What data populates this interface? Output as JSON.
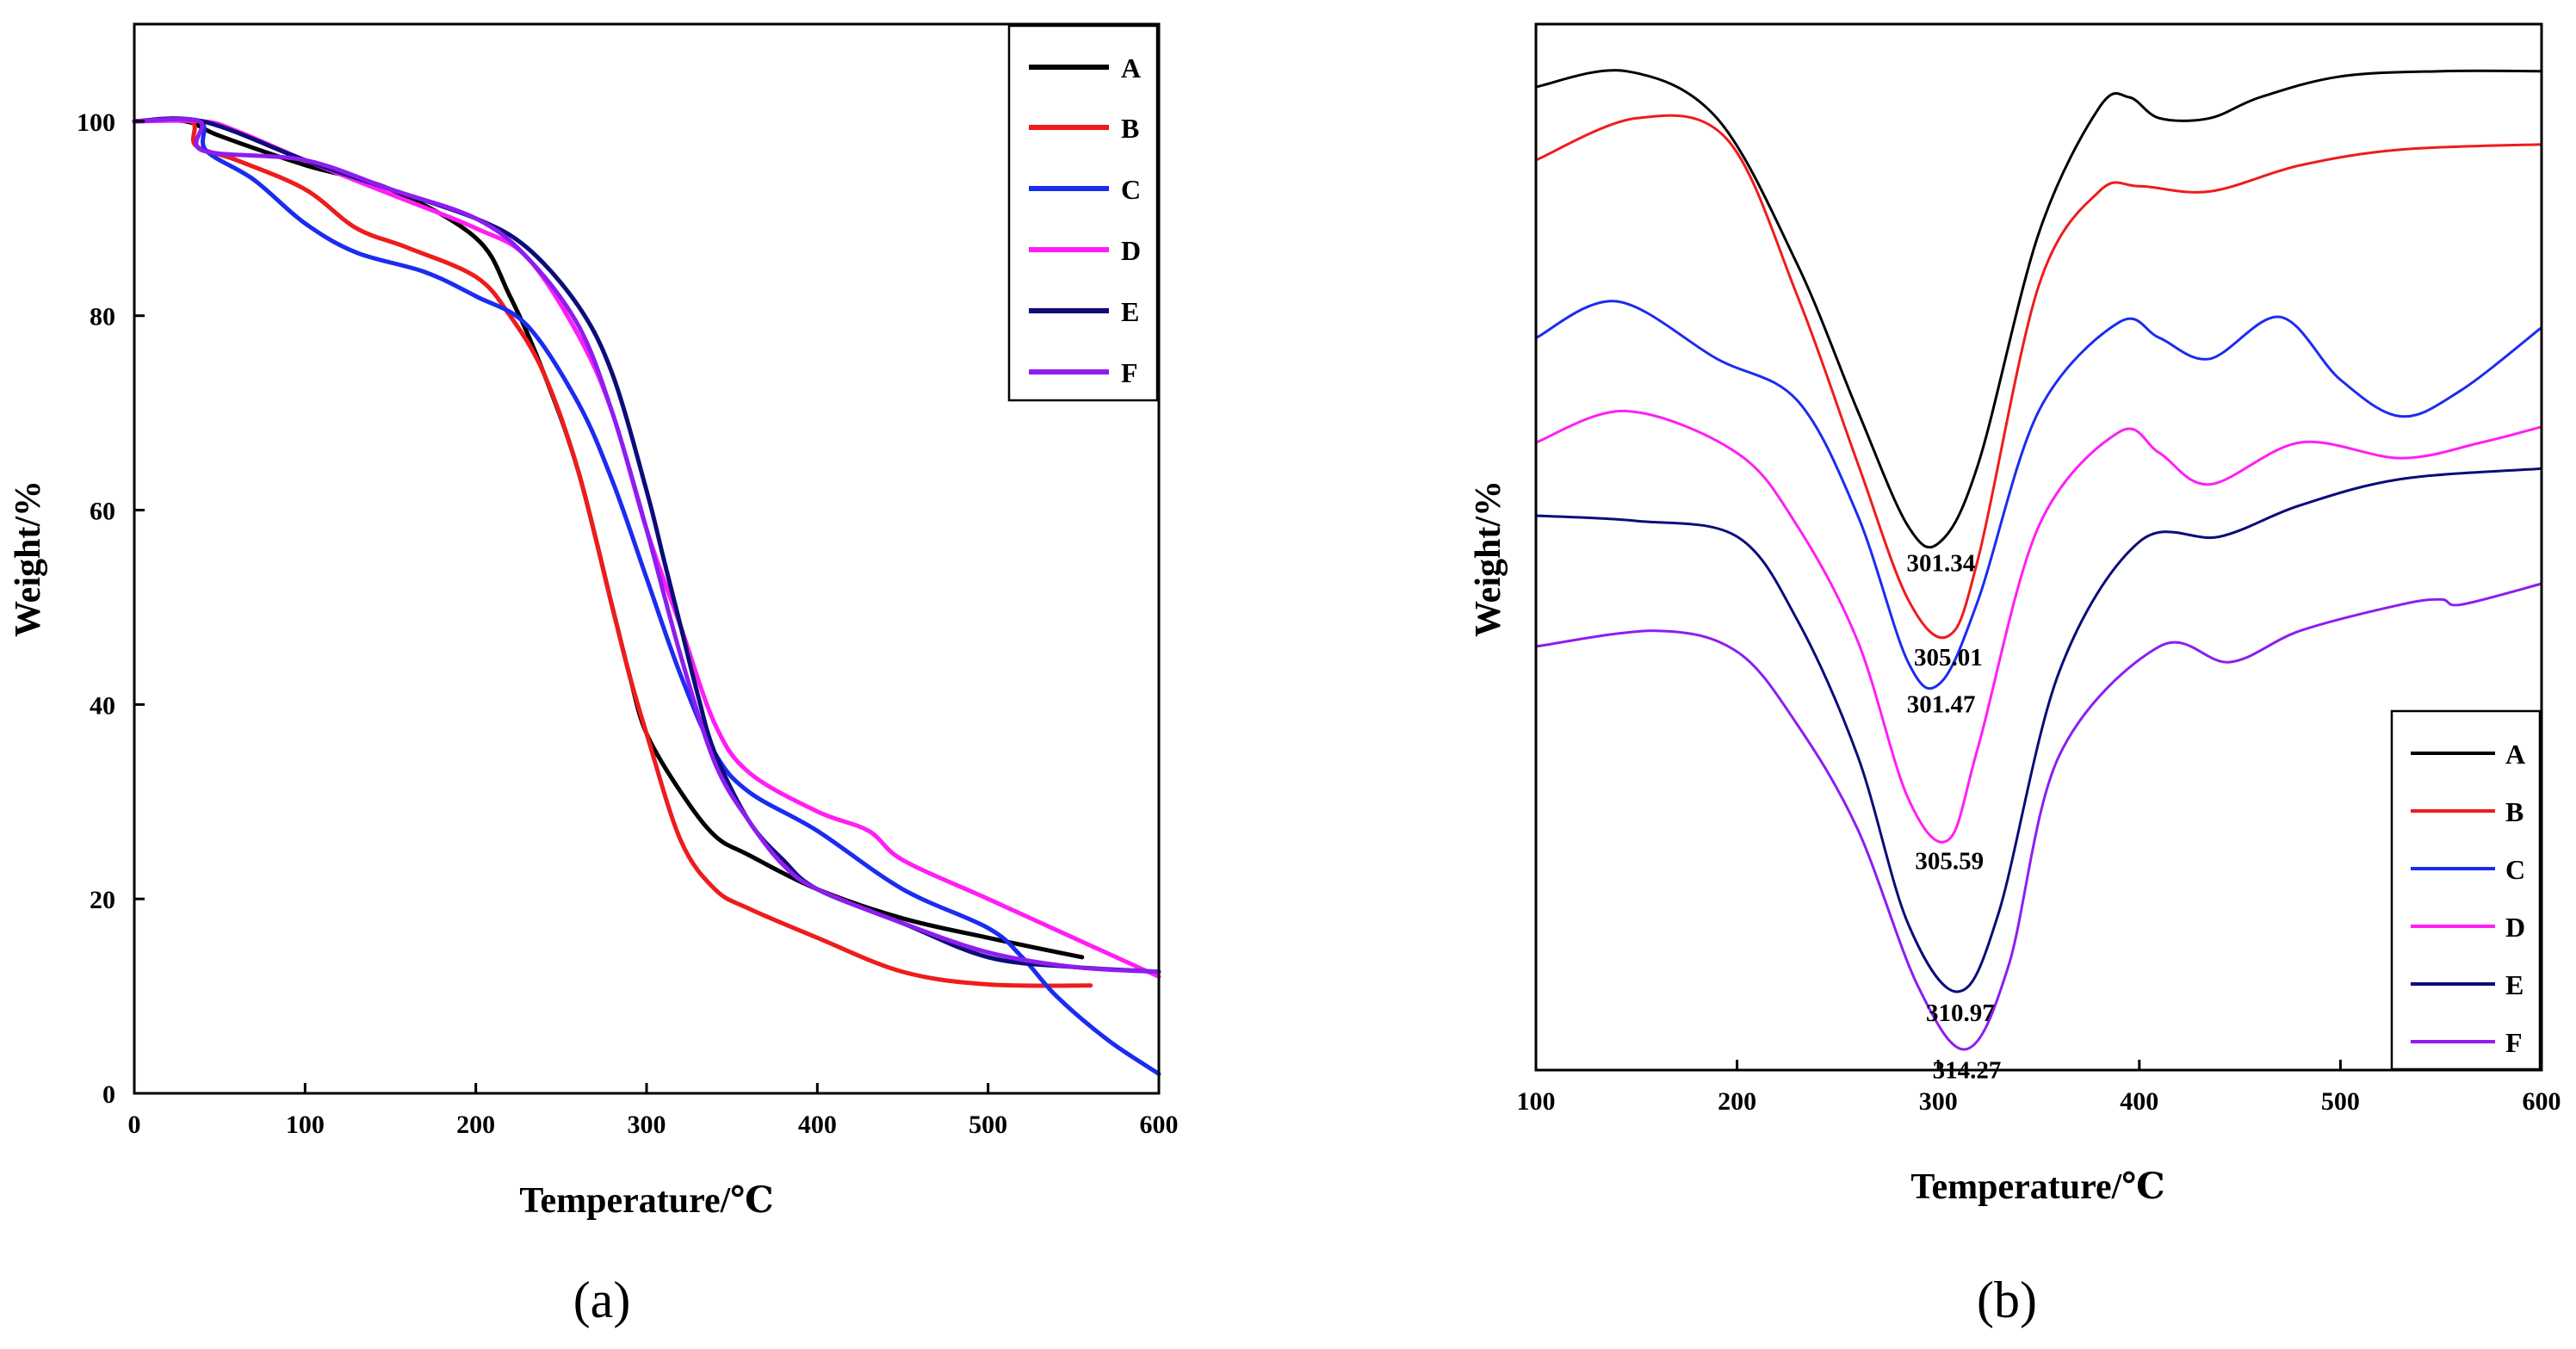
{
  "colors": {
    "A": "#000000",
    "B": "#ee1c1c",
    "C": "#1b2cf0",
    "D": "#ff1ef5",
    "E": "#0c0c7a",
    "F": "#8e1df0"
  },
  "chart_data": [
    {
      "type": "line",
      "panel_label": "(a)",
      "xlabel": "Temperature/℃",
      "ylabel": "Weight/%",
      "xlim": [
        0,
        600
      ],
      "ylim": [
        0,
        110
      ],
      "xticks": [
        "0",
        "100",
        "200",
        "300",
        "400",
        "500",
        "600"
      ],
      "yticks": [
        "0",
        "20",
        "40",
        "60",
        "80",
        "100"
      ],
      "legend_position": "top-right",
      "series": [
        {
          "name": "A",
          "x": [
            0,
            30,
            50,
            100,
            150,
            200,
            220,
            240,
            260,
            280,
            290,
            300,
            320,
            340,
            360,
            400,
            450,
            500,
            555
          ],
          "y": [
            100,
            100,
            98.5,
            95.5,
            93,
            88,
            82,
            74,
            64,
            50,
            43,
            37,
            31,
            26.5,
            24.5,
            21,
            18,
            16,
            14
          ]
        },
        {
          "name": "B",
          "x": [
            0,
            33,
            36,
            60,
            100,
            130,
            160,
            200,
            220,
            240,
            260,
            280,
            290,
            300,
            320,
            340,
            360,
            400,
            450,
            500,
            560
          ],
          "y": [
            100,
            100,
            97.5,
            96,
            93,
            89,
            87,
            84,
            80,
            74,
            64,
            50,
            43,
            37,
            26,
            21,
            19,
            16,
            12.5,
            11.2,
            11.1
          ]
        },
        {
          "name": "C",
          "x": [
            0,
            38,
            42,
            70,
            100,
            130,
            170,
            200,
            230,
            260,
            280,
            300,
            320,
            340,
            360,
            400,
            450,
            500,
            520,
            540,
            570,
            600
          ],
          "y": [
            100,
            100,
            97,
            94,
            89.5,
            86.5,
            84.5,
            82,
            79,
            71,
            63,
            53,
            43,
            35,
            31,
            27,
            21,
            17,
            14,
            10,
            5.5,
            2
          ]
        },
        {
          "name": "D",
          "x": [
            0,
            40,
            60,
            100,
            150,
            200,
            230,
            260,
            280,
            300,
            320,
            340,
            360,
            400,
            430,
            450,
            500,
            550,
            600
          ],
          "y": [
            100,
            100,
            99,
            96,
            92.5,
            89,
            86,
            78,
            70,
            58,
            48,
            38,
            33,
            29,
            27,
            24,
            20,
            16,
            12
          ]
        },
        {
          "name": "E",
          "x": [
            0,
            40,
            100,
            150,
            200,
            230,
            260,
            280,
            300,
            310,
            320,
            330,
            340,
            360,
            380,
            400,
            450,
            500,
            550,
            600
          ],
          "y": [
            100,
            100,
            96,
            93,
            90,
            87,
            81,
            74,
            62,
            55,
            48,
            41,
            35,
            28,
            24,
            21,
            17.5,
            14,
            13,
            12.5
          ]
        },
        {
          "name": "F",
          "x": [
            0,
            38,
            40,
            100,
            150,
            200,
            230,
            260,
            280,
            300,
            320,
            340,
            360,
            380,
            400,
            450,
            500,
            550,
            600
          ],
          "y": [
            100,
            100,
            97,
            96,
            93,
            90,
            86,
            79,
            70,
            58,
            45,
            34,
            28,
            23.5,
            21,
            17.5,
            14.5,
            13,
            12.5
          ]
        }
      ]
    },
    {
      "type": "line",
      "panel_label": "(b)",
      "xlabel": "Temperature/℃",
      "ylabel": "Weight/%",
      "xlim": [
        100,
        600
      ],
      "ylim": [
        0,
        100
      ],
      "xticks": [
        "100",
        "200",
        "300",
        "400",
        "500",
        "600"
      ],
      "yticks": [],
      "legend_position": "bottom-right",
      "series": [
        {
          "name": "A",
          "peak_label": "301.34",
          "peak_x": 301.34,
          "x": [
            100,
            145,
            190,
            230,
            260,
            285,
            301,
            320,
            350,
            380,
            395,
            410,
            435,
            460,
            500,
            550,
            600
          ],
          "y": [
            94,
            95.5,
            91,
            77,
            63,
            52,
            50.5,
            58,
            80,
            92,
            93,
            91,
            91,
            93,
            95,
            95.5,
            95.5
          ]
        },
        {
          "name": "B",
          "peak_label": "305.01",
          "peak_x": 305.01,
          "x": [
            100,
            150,
            195,
            230,
            260,
            285,
            305,
            320,
            350,
            380,
            400,
            435,
            480,
            530,
            600
          ],
          "y": [
            87,
            91,
            89,
            74,
            58,
            45,
            41.5,
            49,
            75,
            84,
            84.5,
            84,
            86.5,
            88,
            88.5
          ]
        },
        {
          "name": "C",
          "peak_label": "301.47",
          "peak_x": 301.47,
          "x": [
            100,
            140,
            190,
            230,
            260,
            285,
            301,
            320,
            350,
            390,
            410,
            435,
            470,
            500,
            530,
            560,
            600
          ],
          "y": [
            70,
            73.5,
            68,
            64,
            53,
            39,
            37,
            45,
            63,
            71.5,
            70,
            68,
            72,
            66,
            62.5,
            65,
            71
          ]
        },
        {
          "name": "D",
          "peak_label": "305.59",
          "peak_x": 305.59,
          "x": [
            100,
            145,
            200,
            230,
            260,
            285,
            305,
            320,
            350,
            390,
            410,
            435,
            480,
            530,
            570,
            600
          ],
          "y": [
            60,
            63,
            59,
            52,
            41,
            26,
            22,
            31,
            52,
            61,
            59,
            56,
            60,
            58.5,
            60,
            61.5
          ]
        },
        {
          "name": "E",
          "peak_label": "310.97",
          "peak_x": 310.97,
          "x": [
            100,
            150,
            200,
            230,
            260,
            285,
            310,
            330,
            360,
            400,
            440,
            480,
            530,
            600
          ],
          "y": [
            53,
            52.5,
            51,
            43,
            30,
            14,
            7.5,
            15,
            38,
            50.5,
            51,
            54,
            56.5,
            57.5
          ]
        },
        {
          "name": "F",
          "peak_label": "314.27",
          "peak_x": 314.27,
          "x": [
            100,
            160,
            200,
            230,
            260,
            290,
            314,
            335,
            360,
            410,
            445,
            480,
            530,
            550,
            560,
            600
          ],
          "y": [
            40.5,
            42,
            40,
            33,
            23,
            8,
            2,
            10,
            30,
            40.5,
            39,
            42,
            44.5,
            45,
            44.5,
            46.5
          ]
        }
      ]
    }
  ]
}
